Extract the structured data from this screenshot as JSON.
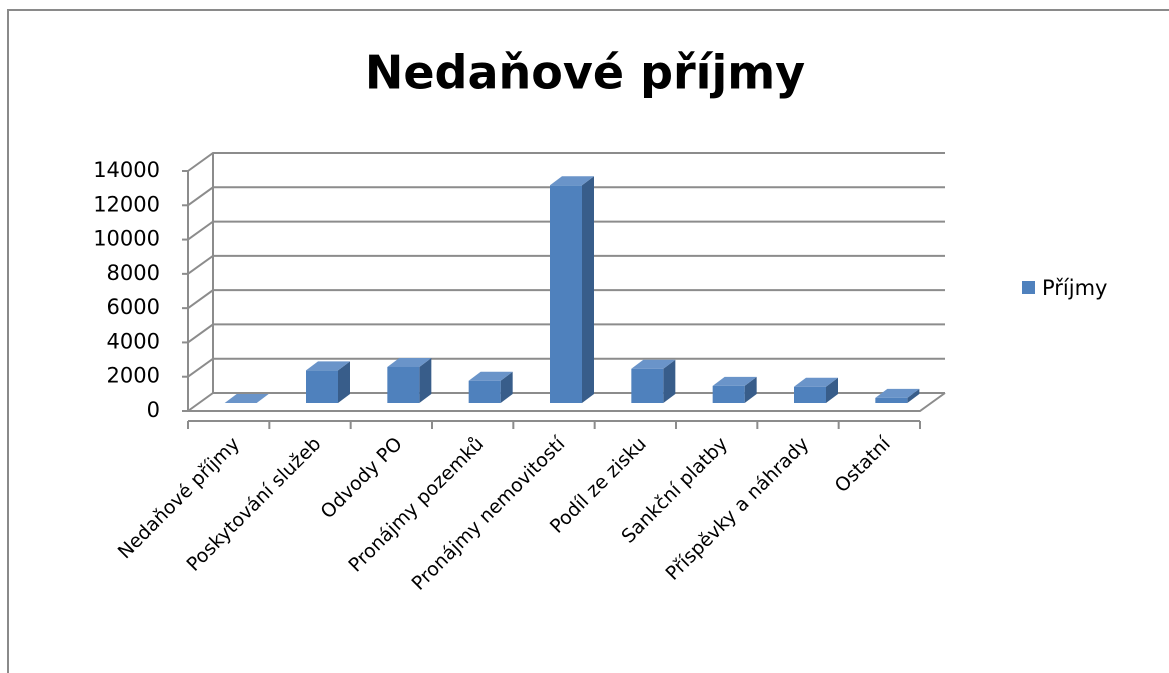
{
  "chart_data": {
    "type": "bar3d",
    "title": "Nedaňové příjmy",
    "categories": [
      "Nedaňové příjmy",
      "Poskytování služeb",
      "Odvody PO",
      "Pronájmy pozemků",
      "Pronájmy nemovitostí",
      "Podíl ze zisku",
      "Sankční platby",
      "Příspěvky a náhrady",
      "Ostatní"
    ],
    "series": [
      {
        "name": "Příjmy",
        "color": "#4f81bd",
        "values": [
          0,
          1900,
          2100,
          1300,
          12700,
          2000,
          1000,
          950,
          300
        ]
      }
    ],
    "ylim": [
      0,
      14000
    ],
    "yticks": [
      0,
      2000,
      4000,
      6000,
      8000,
      10000,
      12000,
      14000
    ],
    "grid": true,
    "legend": "right"
  }
}
